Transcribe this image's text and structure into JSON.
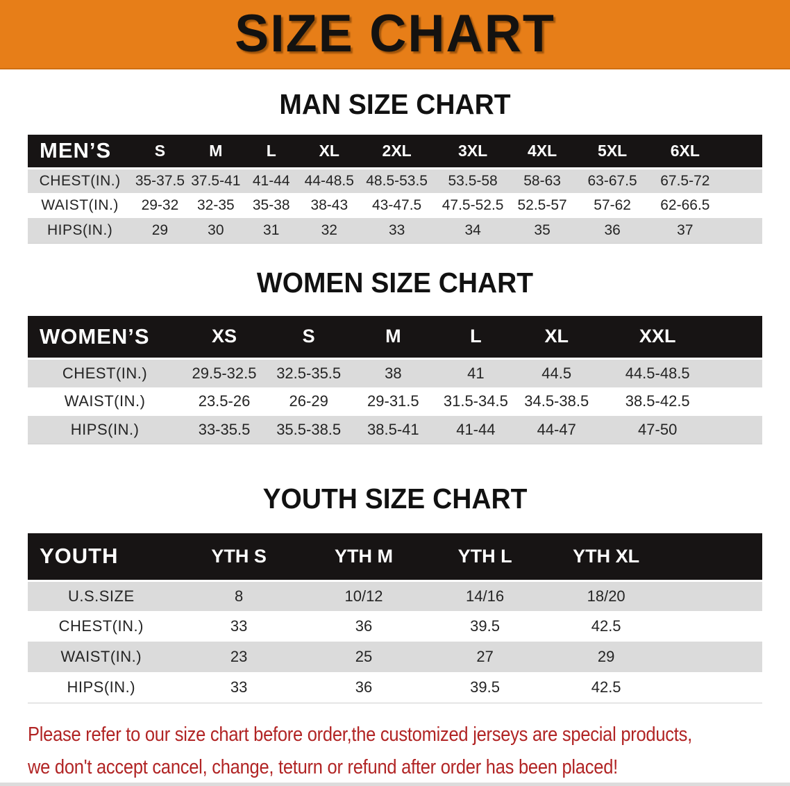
{
  "banner": {
    "title": "SIZE CHART"
  },
  "colors": {
    "banner_orange": "#e77e18",
    "header_black": "#171414",
    "row_gray": "#dbdbdb",
    "disclaimer_red": "#b12424"
  },
  "sections": [
    {
      "title": "MAN SIZE CHART",
      "table": {
        "label": "MEN’S",
        "sizes": [
          "S",
          "M",
          "L",
          "XL",
          "2XL",
          "3XL",
          "4XL",
          "5XL",
          "6XL"
        ],
        "rows": [
          {
            "label": "CHEST(IN.)",
            "values": [
              "35-37.5",
              "37.5-41",
              "41-44",
              "44-48.5",
              "48.5-53.5",
              "53.5-58",
              "58-63",
              "63-67.5",
              "67.5-72"
            ]
          },
          {
            "label": "WAIST(IN.)",
            "values": [
              "29-32",
              "32-35",
              "35-38",
              "38-43",
              "43-47.5",
              "47.5-52.5",
              "52.5-57",
              "57-62",
              "62-66.5"
            ]
          },
          {
            "label": "HIPS(IN.)",
            "values": [
              "29",
              "30",
              "31",
              "32",
              "33",
              "34",
              "35",
              "36",
              "37"
            ]
          }
        ]
      }
    },
    {
      "title": "WOMEN SIZE CHART",
      "table": {
        "label": "WOMEN’S",
        "sizes": [
          "XS",
          "S",
          "M",
          "L",
          "XL",
          "XXL"
        ],
        "rows": [
          {
            "label": "CHEST(IN.)",
            "values": [
              "29.5-32.5",
              "32.5-35.5",
              "38",
              "41",
              "44.5",
              "44.5-48.5"
            ]
          },
          {
            "label": "WAIST(IN.)",
            "values": [
              "23.5-26",
              "26-29",
              "29-31.5",
              "31.5-34.5",
              "34.5-38.5",
              "38.5-42.5"
            ]
          },
          {
            "label": "HIPS(IN.)",
            "values": [
              "33-35.5",
              "35.5-38.5",
              "38.5-41",
              "41-44",
              "44-47",
              "47-50"
            ]
          }
        ]
      }
    },
    {
      "title": "YOUTH SIZE CHART",
      "table": {
        "label": "YOUTH",
        "sizes": [
          "YTH S",
          "YTH M",
          "YTH L",
          "YTH XL"
        ],
        "rows": [
          {
            "label": "U.S.SIZE",
            "values": [
              "8",
              "10/12",
              "14/16",
              "18/20"
            ]
          },
          {
            "label": "CHEST(IN.)",
            "values": [
              "33",
              "36",
              "39.5",
              "42.5"
            ]
          },
          {
            "label": "WAIST(IN.)",
            "values": [
              "23",
              "25",
              "27",
              "29"
            ]
          },
          {
            "label": "HIPS(IN.)",
            "values": [
              "33",
              "36",
              "39.5",
              "42.5"
            ]
          }
        ]
      }
    }
  ],
  "disclaimer": {
    "lines": [
      "Please refer to our size chart before order,the customized jerseys are special products,",
      "we don't accept cancel, change, teturn or refund after order has been placed!"
    ]
  }
}
